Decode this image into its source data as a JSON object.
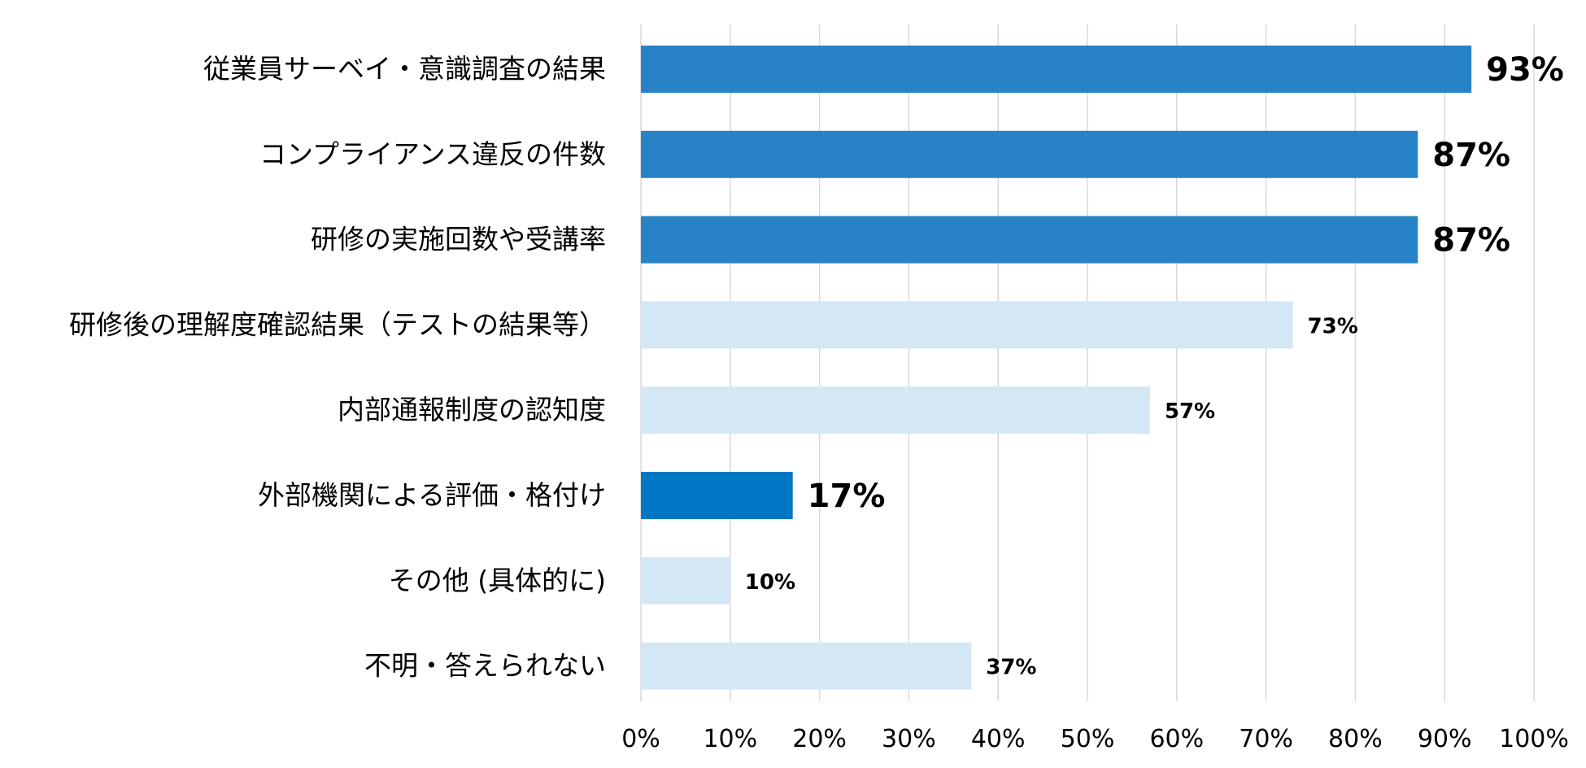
{
  "chart_data": {
    "type": "bar",
    "orientation": "horizontal",
    "title": "",
    "xlabel": "",
    "ylabel": "",
    "categories": [
      "従業員サーベイ・意識調査の結果",
      "コンプライアンス違反の件数",
      "研修の実施回数や受講率",
      "研修後の理解度確認結果（テストの結果等）",
      "内部通報制度の認知度",
      "外部機関による評価・格付け",
      "その他 (具体的に)",
      "不明・答えられない"
    ],
    "values": [
      93,
      87,
      87,
      73,
      57,
      17,
      10,
      37
    ],
    "value_labels": [
      "93%",
      "87%",
      "87%",
      "73%",
      "57%",
      "17%",
      "10%",
      "37%"
    ],
    "highlighted": [
      true,
      true,
      true,
      false,
      false,
      true,
      false,
      false
    ],
    "xlim": [
      0,
      100
    ],
    "x_ticks": [
      "0%",
      "10%",
      "20%",
      "30%",
      "40%",
      "50%",
      "60%",
      "70%",
      "80%",
      "90%",
      "100%"
    ],
    "grid": true,
    "legend": "none",
    "colors": {
      "highlight": "#2883C6",
      "highlight_alt": "#0277C4",
      "normal": "#D3E7F5",
      "grid": "#D9D9D9",
      "text": "#000000"
    }
  }
}
